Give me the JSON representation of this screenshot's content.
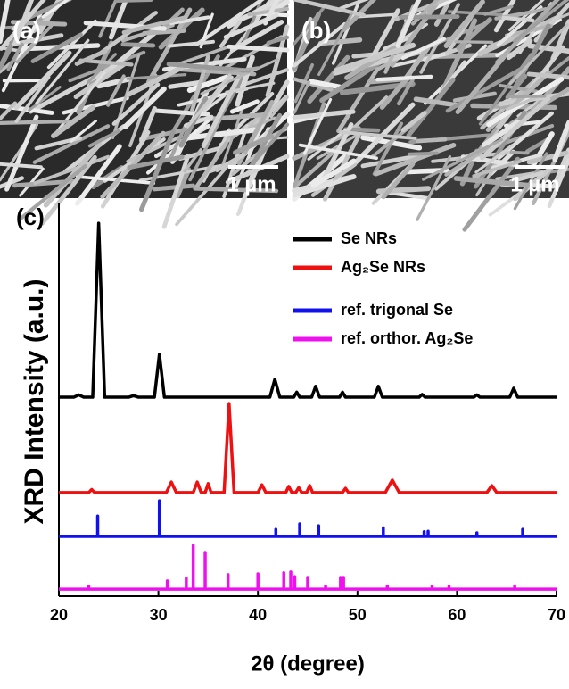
{
  "images": [
    {
      "label": "(a)",
      "scale_bar": "1 µm"
    },
    {
      "label": "(b)",
      "scale_bar": "1 µm"
    }
  ],
  "chart_data": {
    "type": "line",
    "panel_label": "(c)",
    "x_label": "2θ (degree)",
    "y_label": "XRD Intensity (a.u.)",
    "xlim": [
      20,
      70
    ],
    "xticks": [
      20,
      30,
      40,
      50,
      60,
      70
    ],
    "ylim": [
      0,
      100
    ],
    "series": [
      {
        "name": "Se NRs",
        "color": "#000000",
        "x": [
          20,
          21.5,
          22,
          22.5,
          23.4,
          24.0,
          24.6,
          27,
          27.5,
          28,
          29.6,
          30.1,
          30.6,
          35,
          36,
          41.2,
          41.7,
          42.2,
          43.6,
          43.9,
          44.2,
          45.4,
          45.8,
          46.2,
          48.2,
          48.5,
          48.8,
          51.7,
          52.1,
          52.5,
          56.2,
          56.5,
          56.8,
          61.7,
          62,
          62.3,
          65.3,
          65.7,
          66.1,
          70
        ],
        "values": [
          50.9,
          50.9,
          51.5,
          50.9,
          50.9,
          95.4,
          50.9,
          50.9,
          51.3,
          50.9,
          50.9,
          61.9,
          50.9,
          50.9,
          50.9,
          50.9,
          55.5,
          50.9,
          50.9,
          52.2,
          50.9,
          50.9,
          53.7,
          50.9,
          50.9,
          52.2,
          50.9,
          50.9,
          53.7,
          50.9,
          50.9,
          51.6,
          50.9,
          50.9,
          51.5,
          50.9,
          50.9,
          53.2,
          50.9,
          50.9
        ]
      },
      {
        "name": "Ag₂Se NRs",
        "color": "#ee1111",
        "x": [
          20,
          23,
          23.3,
          23.6,
          30.8,
          31.3,
          31.8,
          33.5,
          33.9,
          34.3,
          34.7,
          35.0,
          35.3,
          36.6,
          37.1,
          37.6,
          40.0,
          40.4,
          40.8,
          42.8,
          43.1,
          43.4,
          43.8,
          44.1,
          44.4,
          44.9,
          45.2,
          45.5,
          48.5,
          48.8,
          49.1,
          52.8,
          53.5,
          54.2,
          63.0,
          63.5,
          64.0,
          70
        ],
        "values": [
          26.5,
          26.5,
          27.3,
          26.5,
          26.5,
          29.2,
          26.5,
          26.5,
          29.2,
          26.5,
          26.5,
          28.8,
          26.5,
          26.5,
          49.3,
          26.5,
          26.5,
          28.5,
          26.5,
          26.5,
          28.1,
          26.5,
          26.5,
          27.8,
          26.5,
          26.5,
          28.3,
          26.5,
          26.5,
          27.6,
          26.5,
          26.5,
          29.7,
          26.5,
          26.5,
          28.3,
          26.5,
          26.5
        ]
      },
      {
        "name": "ref. trigonal Se",
        "color": "#1111ee",
        "x": [
          20,
          23.9,
          23.9,
          23.9,
          30.1,
          30.1,
          30.1,
          41.8,
          41.8,
          41.8,
          44.2,
          44.2,
          44.2,
          46.1,
          46.1,
          46.1,
          52.6,
          52.6,
          52.6,
          56.7,
          56.7,
          56.7,
          57.1,
          57.1,
          57.1,
          62,
          62,
          62,
          66.6,
          66.6,
          66.6,
          70
        ],
        "values": [
          15.3,
          15.3,
          20.5,
          15.3,
          15.3,
          24.4,
          15.3,
          15.3,
          17.1,
          15.3,
          15.3,
          18.5,
          15.3,
          15.3,
          18.0,
          15.3,
          15.3,
          17.5,
          15.3,
          15.3,
          16.5,
          15.3,
          15.3,
          16.6,
          15.3,
          15.3,
          16.2,
          15.3,
          15.3,
          17.1,
          15.3,
          15.3
        ]
      },
      {
        "name": "ref. orthor. Ag₂Se",
        "color": "#ee11ee",
        "x": [
          20,
          23.0,
          23.0,
          23.0,
          30.9,
          30.9,
          30.9,
          32.8,
          32.8,
          32.8,
          33.5,
          33.5,
          33.5,
          34.7,
          34.7,
          34.7,
          37.0,
          37.0,
          37.0,
          40.0,
          40.0,
          40.0,
          42.6,
          42.6,
          42.6,
          43.3,
          43.3,
          43.3,
          43.7,
          43.7,
          43.7,
          45.0,
          45.0,
          45.0,
          46.8,
          46.8,
          46.8,
          48.3,
          48.3,
          48.3,
          48.6,
          48.6,
          48.6,
          53.0,
          53.0,
          53.0,
          57.5,
          57.5,
          57.5,
          59.2,
          59.2,
          59.2,
          65.8,
          65.8,
          65.8,
          70
        ],
        "values": [
          1.8,
          1.8,
          2.5,
          1.8,
          1.8,
          3.9,
          1.8,
          1.8,
          4.6,
          1.8,
          1.8,
          13.0,
          1.8,
          1.8,
          11.2,
          1.8,
          1.8,
          5.5,
          1.8,
          1.8,
          5.7,
          1.8,
          1.8,
          6.0,
          1.8,
          1.8,
          6.2,
          1.8,
          1.8,
          5.0,
          1.8,
          1.8,
          4.8,
          1.8,
          1.8,
          2.6,
          1.8,
          1.8,
          4.8,
          1.8,
          1.8,
          4.8,
          1.8,
          1.8,
          2.6,
          1.8,
          1.8,
          2.5,
          1.8,
          1.8,
          2.5,
          1.8,
          1.8,
          2.6,
          1.8,
          1.8
        ]
      }
    ]
  }
}
